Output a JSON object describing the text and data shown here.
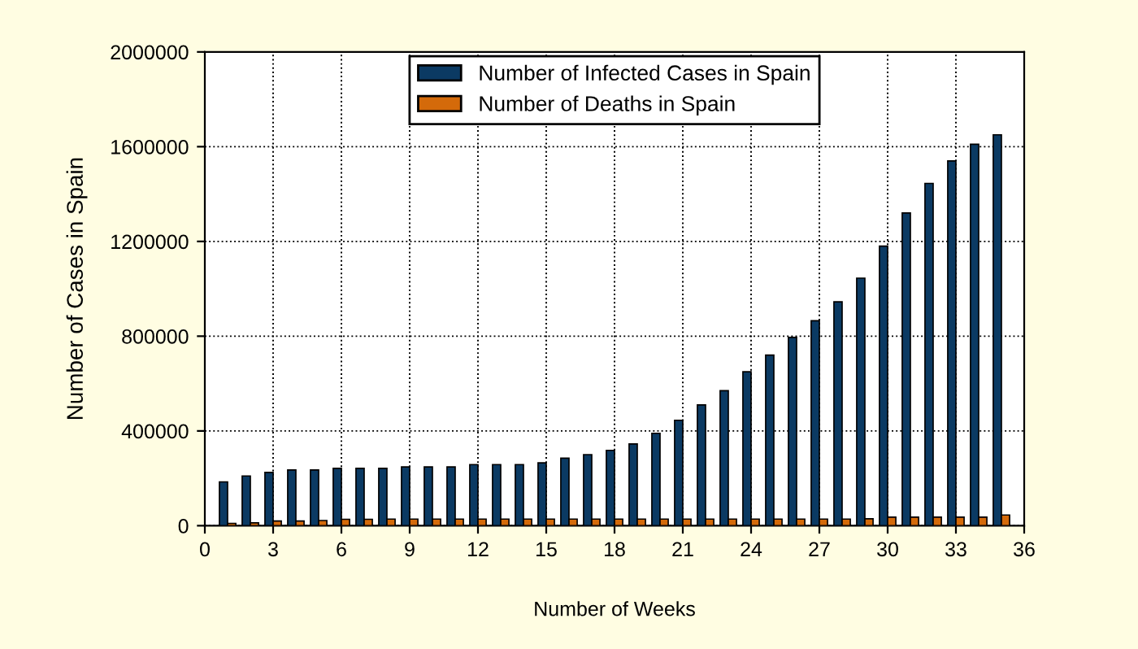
{
  "chart_data": {
    "type": "bar",
    "xlabel": "Number of Weeks",
    "ylabel": "Number of Cases in Spain",
    "x": [
      1,
      2,
      3,
      4,
      5,
      6,
      7,
      8,
      9,
      10,
      11,
      12,
      13,
      14,
      15,
      16,
      17,
      18,
      19,
      20,
      21,
      22,
      23,
      24,
      25,
      26,
      27,
      28,
      29,
      30,
      31,
      32,
      33,
      34,
      35
    ],
    "series": [
      {
        "name": "Number of Infected Cases in Spain",
        "color": "#0b3a63",
        "values": [
          185000,
          210000,
          225000,
          235000,
          235000,
          242000,
          242000,
          242000,
          248000,
          248000,
          248000,
          258000,
          258000,
          258000,
          265000,
          285000,
          300000,
          318000,
          345000,
          390000,
          445000,
          510000,
          570000,
          650000,
          720000,
          795000,
          865000,
          945000,
          1045000,
          1180000,
          1320000,
          1445000,
          1540000,
          1610000,
          1650000
        ]
      },
      {
        "name": "Number of Deaths in Spain",
        "color": "#d46a0a",
        "values": [
          10000,
          12000,
          20000,
          20000,
          22000,
          27000,
          27000,
          28000,
          28000,
          28000,
          28000,
          28000,
          28000,
          28000,
          28000,
          28000,
          28000,
          28000,
          28000,
          28000,
          28000,
          28000,
          28000,
          28000,
          28000,
          28000,
          28000,
          28000,
          29000,
          36000,
          36000,
          36000,
          36000,
          36000,
          45000
        ]
      }
    ],
    "xlim": [
      0,
      36
    ],
    "xticks": [
      0,
      3,
      6,
      9,
      12,
      15,
      18,
      21,
      24,
      27,
      30,
      33,
      36
    ],
    "ylim": [
      0,
      2000000
    ],
    "yticks": [
      0,
      400000,
      800000,
      1200000,
      1600000,
      2000000
    ],
    "grid": true,
    "legend": "top"
  }
}
